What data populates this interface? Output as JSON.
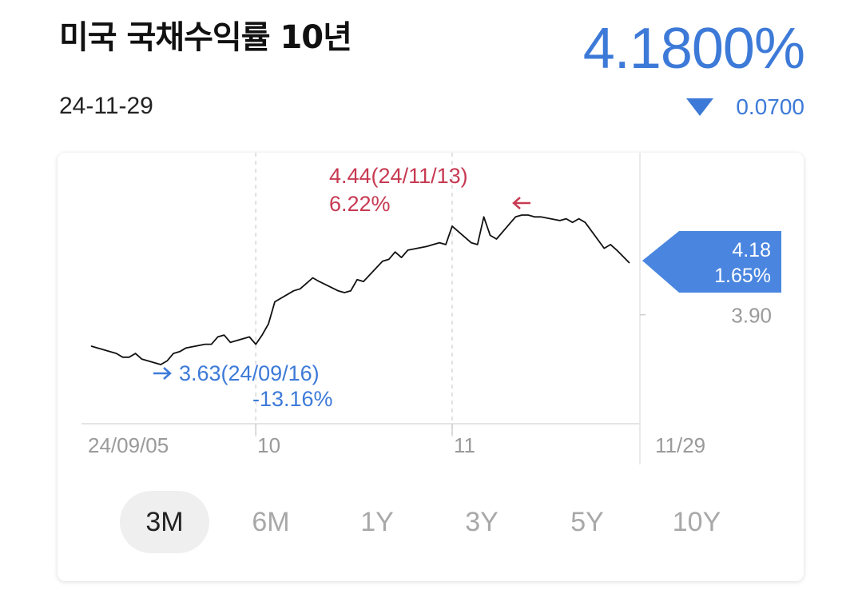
{
  "header": {
    "title": "미국 국채수익률 10년",
    "date": "24-11-29",
    "price": "4.1800%",
    "change": "0.0700",
    "change_direction": "down",
    "accent_color": "#3d7ad8"
  },
  "chart_data": {
    "type": "line",
    "x_tick_labels": [
      "24/09/05",
      "10",
      "11",
      "11/29"
    ],
    "x_range": [
      "24/09/05",
      "24/11/29"
    ],
    "y_range": [
      3.6,
      4.5
    ],
    "y_tick_labels": [
      "3.90"
    ],
    "grid": true,
    "series": [
      {
        "color": "#111111",
        "x": [
          "24/09/05",
          "24/09/06",
          "24/09/09",
          "24/09/10",
          "24/09/11",
          "24/09/12",
          "24/09/13",
          "24/09/16",
          "24/09/17",
          "24/09/18",
          "24/09/19",
          "24/09/20",
          "24/09/23",
          "24/09/24",
          "24/09/25",
          "24/09/26",
          "24/09/27",
          "24/09/30",
          "24/10/01",
          "24/10/02",
          "24/10/03",
          "24/10/04",
          "24/10/07",
          "24/10/08",
          "24/10/09",
          "24/10/10",
          "24/10/11",
          "24/10/14",
          "24/10/15",
          "24/10/16",
          "24/10/17",
          "24/10/18",
          "24/10/21",
          "24/10/22",
          "24/10/23",
          "24/10/24",
          "24/10/25",
          "24/10/28",
          "24/10/29",
          "24/10/30",
          "24/10/31",
          "24/11/01",
          "24/11/04",
          "24/11/05",
          "24/11/06",
          "24/11/07",
          "24/11/08",
          "24/11/11",
          "24/11/12",
          "24/11/13",
          "24/11/14",
          "24/11/15",
          "24/11/18",
          "24/11/19",
          "24/11/20",
          "24/11/21",
          "24/11/22",
          "24/11/25",
          "24/11/26",
          "24/11/27",
          "24/11/29"
        ],
        "values": [
          3.73,
          3.72,
          3.69,
          3.67,
          3.67,
          3.69,
          3.66,
          3.63,
          3.65,
          3.69,
          3.7,
          3.72,
          3.74,
          3.74,
          3.78,
          3.79,
          3.75,
          3.78,
          3.74,
          3.79,
          3.85,
          3.97,
          4.03,
          4.04,
          4.07,
          4.1,
          4.08,
          4.03,
          4.02,
          4.03,
          4.09,
          4.08,
          4.19,
          4.2,
          4.24,
          4.21,
          4.25,
          4.27,
          4.28,
          4.29,
          4.28,
          4.38,
          4.29,
          4.28,
          4.43,
          4.33,
          4.31,
          4.43,
          4.44,
          4.44,
          4.43,
          4.43,
          4.41,
          4.42,
          4.4,
          4.42,
          4.4,
          4.26,
          4.28,
          4.25,
          4.18
        ]
      }
    ],
    "annotations": {
      "high": {
        "value_label": "4.44(24/11/13)",
        "pct_label": "6.22%",
        "color": "#c73a52"
      },
      "low": {
        "value_label": "3.63(24/09/16)",
        "pct_label": "-13.16%",
        "color": "#3d7ad8"
      },
      "current": {
        "value_label": "4.18",
        "pct_label": "1.65%",
        "color": "#4a86e0"
      }
    }
  },
  "tabs": [
    {
      "label": "3M",
      "active": true
    },
    {
      "label": "6M",
      "active": false
    },
    {
      "label": "1Y",
      "active": false
    },
    {
      "label": "3Y",
      "active": false
    },
    {
      "label": "5Y",
      "active": false
    },
    {
      "label": "10Y",
      "active": false
    }
  ]
}
